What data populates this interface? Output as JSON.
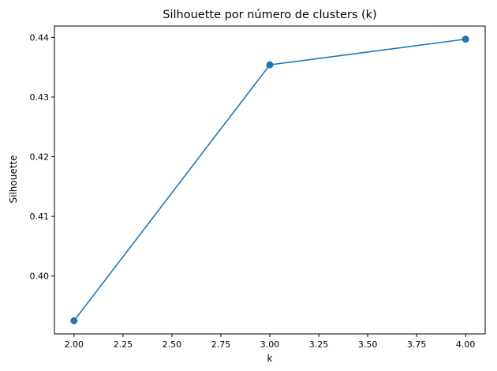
{
  "chart_data": {
    "type": "line",
    "title": "Silhouette por número de clusters (k)",
    "xlabel": "k",
    "ylabel": "Silhouette",
    "x": [
      2.0,
      3.0,
      4.0
    ],
    "series": [
      {
        "values": [
          0.3925,
          0.4354,
          0.4397
        ],
        "color": "#1f77b4",
        "marker": "circle"
      }
    ],
    "xlim": [
      1.9,
      4.1
    ],
    "ylim": [
      0.3903,
      0.4419
    ],
    "xticks": [
      "2.00",
      "2.25",
      "2.50",
      "2.75",
      "3.00",
      "3.25",
      "3.50",
      "3.75",
      "4.00"
    ],
    "xtick_values": [
      2.0,
      2.25,
      2.5,
      2.75,
      3.0,
      3.25,
      3.5,
      3.75,
      4.0
    ],
    "yticks": [
      "0.40",
      "0.41",
      "0.42",
      "0.43",
      "0.44"
    ],
    "ytick_values": [
      0.4,
      0.41,
      0.42,
      0.43,
      0.44
    ],
    "grid": false,
    "legend": "none"
  }
}
